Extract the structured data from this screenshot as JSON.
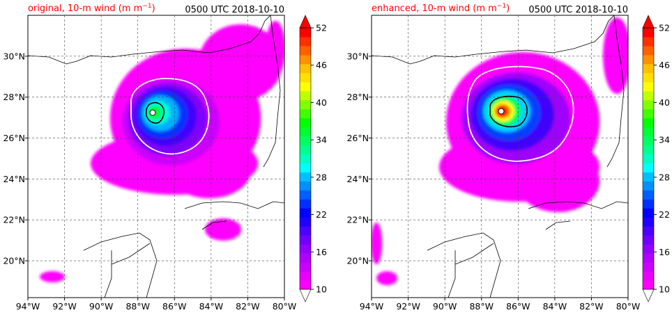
{
  "panels": [
    {
      "title_left": "original, 10-m wind (m m",
      "title_left_sup": "−1",
      "title_left_end": ")",
      "title_right": "0500 UTC 2018-10-10"
    },
    {
      "title_left": "enhanced, 10-m wind (m m",
      "title_left_sup": "−1",
      "title_left_end": ")",
      "title_right": "0500 UTC 2018-10-10"
    }
  ],
  "colors": {
    "title_left": "#ff0000",
    "contour_white": "#ffffff",
    "contour_black": "#000000",
    "scale": [
      "#ff00ff",
      "#e800ff",
      "#cc00ff",
      "#b000ff",
      "#9400ff",
      "#7000ff",
      "#4c00ff",
      "#2000ff",
      "#0000ff",
      "#0030ff",
      "#0060ff",
      "#0090ff",
      "#00c0ff",
      "#00ffff",
      "#00ffc0",
      "#00ff90",
      "#00ff60",
      "#00ff30",
      "#00ff00",
      "#40ff00",
      "#80ff00",
      "#c0ff00",
      "#ffff00",
      "#ffe000",
      "#ffc000",
      "#ff9000",
      "#ff6000",
      "#ff3000",
      "#ff0000",
      "#ff0000"
    ]
  },
  "chart_data": [
    {
      "type": "heatmap",
      "title": "original, 10-m wind (m m−1)",
      "subtitle": "0500 UTC 2018-10-10",
      "x_ticks": [
        "94°W",
        "92°W",
        "90°W",
        "88°W",
        "86°W",
        "84°W",
        "82°W",
        "80°W"
      ],
      "y_ticks": [
        "20°N",
        "22°N",
        "24°N",
        "26°N",
        "28°N",
        "30°N"
      ],
      "xlim": [
        -94,
        -80
      ],
      "ylim": [
        18.2,
        32.0
      ],
      "colorbar": {
        "ticks": [
          "10",
          "16",
          "22",
          "28",
          "34",
          "40",
          "46",
          "52"
        ],
        "range": [
          10,
          52
        ],
        "extend": "both"
      },
      "grid": true,
      "storm_center": {
        "lon": -87.2,
        "lat": 27.3
      },
      "peak_wind": 42
    },
    {
      "type": "heatmap",
      "title": "enhanced, 10-m wind (m m−1)",
      "subtitle": "0500 UTC 2018-10-10",
      "x_ticks": [
        "94°W",
        "92°W",
        "90°W",
        "88°W",
        "86°W",
        "84°W",
        "82°W",
        "80°W"
      ],
      "y_ticks": [
        "20°N",
        "22°N",
        "24°N",
        "26°N",
        "28°N",
        "30°N"
      ],
      "xlim": [
        -94,
        -80
      ],
      "ylim": [
        18.2,
        32.0
      ],
      "colorbar": {
        "ticks": [
          "10",
          "16",
          "22",
          "28",
          "34",
          "40",
          "46",
          "52"
        ],
        "range": [
          10,
          52
        ],
        "extend": "both"
      },
      "grid": true,
      "storm_center": {
        "lon": -86.8,
        "lat": 27.35
      },
      "peak_wind": 53
    }
  ]
}
